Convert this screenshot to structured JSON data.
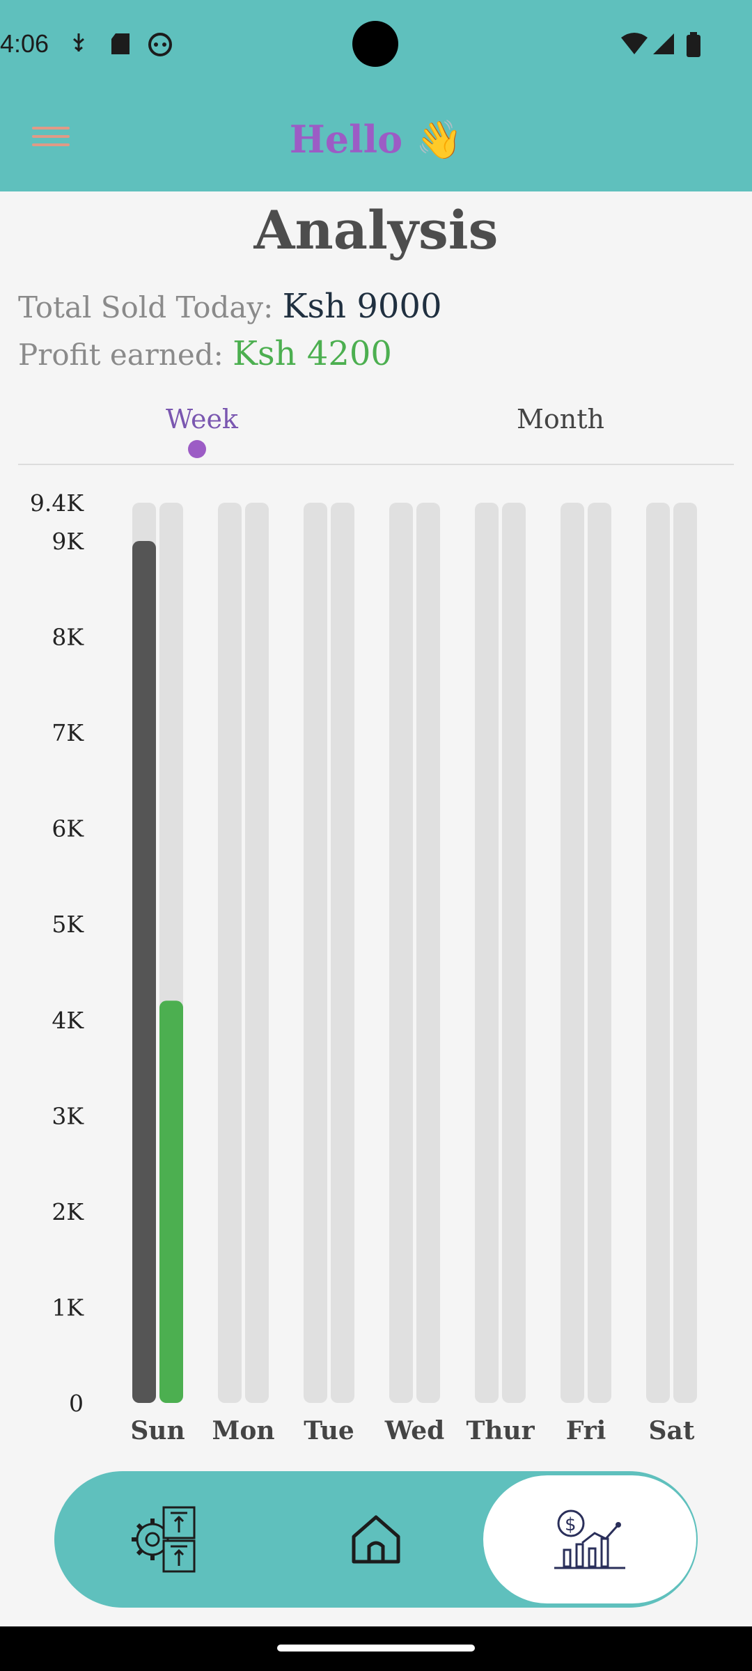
{
  "status_bar": {
    "time": "4:06"
  },
  "header": {
    "greeting": "Hello 👋"
  },
  "page": {
    "title": "Analysis",
    "total_sold_label": "Total Sold Today:",
    "total_sold_value": "Ksh 9000",
    "profit_label": "Profit earned:",
    "profit_value": "Ksh 4200"
  },
  "tabs": [
    {
      "label": "Week",
      "active": true
    },
    {
      "label": "Month",
      "active": false
    }
  ],
  "colors": {
    "teal": "#5fc0bd",
    "sales": "#555555",
    "profit": "#4caf50",
    "track": "#e0e0e0",
    "accent": "#9c5cc5"
  },
  "chart_data": {
    "type": "bar",
    "categories": [
      "Sun",
      "Mon",
      "Tue",
      "Wed",
      "Thur",
      "Fri",
      "Sat"
    ],
    "series": [
      {
        "values": [
          9000,
          0,
          0,
          0,
          0,
          0,
          0
        ]
      },
      {
        "values": [
          4200,
          0,
          0,
          0,
          0,
          0,
          0
        ]
      }
    ],
    "yticks": [
      "0",
      "1K",
      "2K",
      "3K",
      "4K",
      "5K",
      "6K",
      "7K",
      "8K",
      "9K",
      "9.4K"
    ],
    "ytick_values": [
      0,
      1000,
      2000,
      3000,
      4000,
      5000,
      6000,
      7000,
      8000,
      9000,
      9400
    ],
    "ylim": [
      0,
      9400
    ],
    "grid": false,
    "legend": "none"
  },
  "bottom_nav": [
    {
      "icon": "inventory-gear-icon"
    },
    {
      "icon": "home-icon"
    },
    {
      "icon": "analytics-icon",
      "active": true
    }
  ]
}
